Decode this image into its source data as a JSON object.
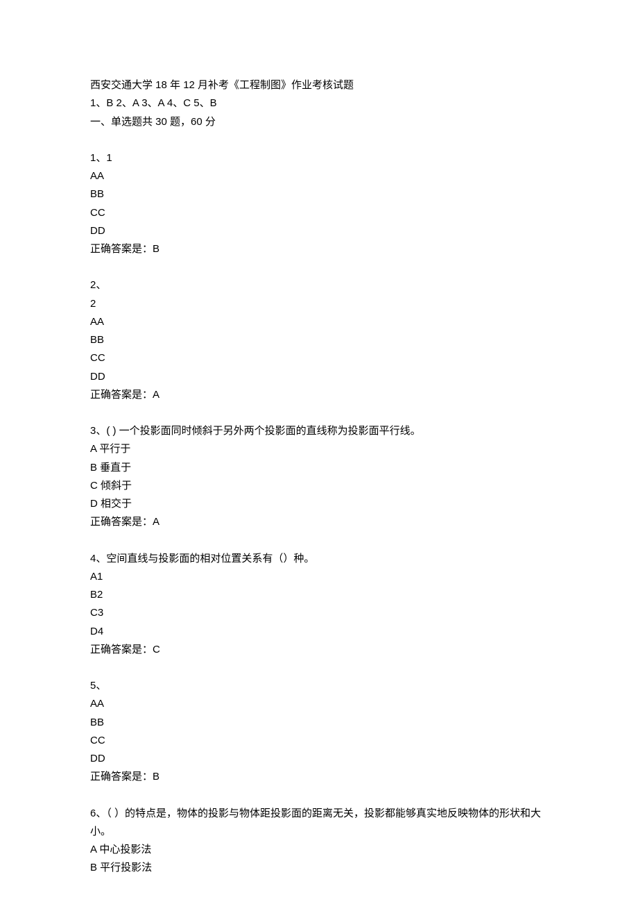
{
  "header": {
    "title": "西安交通大学 18 年 12 月补考《工程制图》作业考核试题",
    "answer_key": "1、B 2、A 3、A 4、C 5、B",
    "section_title": "一、单选题共 30 题，60 分"
  },
  "questions": [
    {
      "number": "1、1",
      "options": [
        "AA",
        "BB",
        "CC",
        "DD"
      ],
      "answer": "正确答案是：B"
    },
    {
      "number": "2、",
      "subtext": "2",
      "options": [
        "AA",
        "BB",
        "CC",
        "DD"
      ],
      "answer": "正确答案是：A"
    },
    {
      "number": "3、( ) 一个投影面同时倾斜于另外两个投影面的直线称为投影面平行线。",
      "options": [
        "A 平行于",
        "B 垂直于",
        "C 倾斜于",
        "D 相交于"
      ],
      "answer": "正确答案是：A"
    },
    {
      "number": "4、空间直线与投影面的相对位置关系有（）种。",
      "options": [
        "A1",
        "B2",
        "C3",
        "D4"
      ],
      "answer": "正确答案是：C"
    },
    {
      "number": "5、",
      "options": [
        "AA",
        "BB",
        "CC",
        "DD"
      ],
      "answer": "正确答案是：B"
    },
    {
      "number": "6、（ ）的特点是，物体的投影与物体距投影面的距离无关，投影都能够真实地反映物体的形状和大小。",
      "options": [
        "A 中心投影法",
        "B 平行投影法"
      ],
      "answer": null
    }
  ]
}
